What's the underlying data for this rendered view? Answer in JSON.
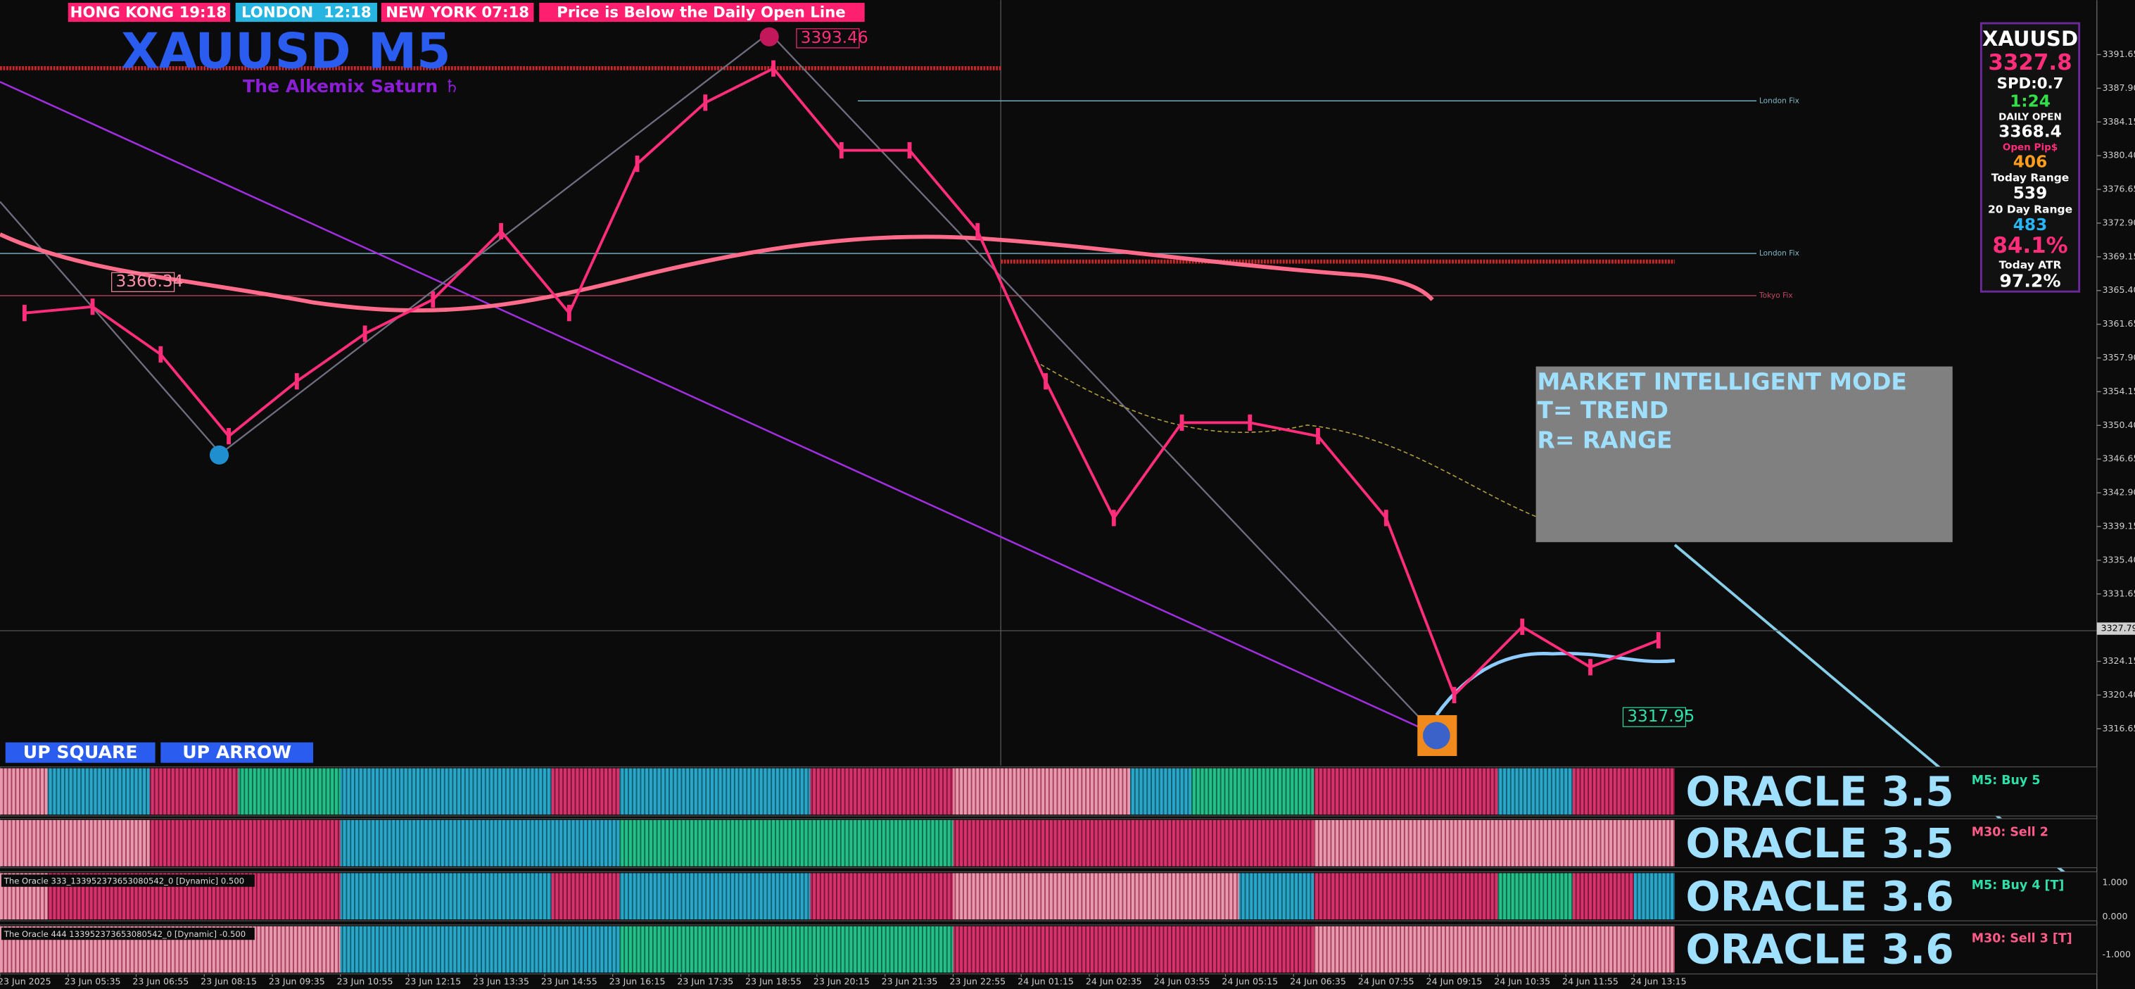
{
  "header": {
    "clocks": [
      "HONG KONG 19:18",
      "LONDON  12:18",
      "NEW YORK 07:18"
    ],
    "alert": "Price is Below the Daily Open Line",
    "symbol_title": "XAUUSD M5",
    "subtitle": "The Alkemix Saturn ♄"
  },
  "chart_data": {
    "type": "line",
    "categories": [
      "23 Jun 2025",
      "23 Jun 05:35",
      "23 Jun 06:55",
      "23 Jun 08:15",
      "23 Jun 09:35",
      "23 Jun 10:55",
      "23 Jun 12:15",
      "23 Jun 13:35",
      "23 Jun 14:55",
      "23 Jun 16:15",
      "23 Jun 17:35",
      "23 Jun 18:55",
      "23 Jun 20:15",
      "23 Jun 21:35",
      "23 Jun 22:55",
      "24 Jun 01:15",
      "24 Jun 02:35",
      "24 Jun 03:55",
      "24 Jun 05:15",
      "24 Jun 06:35",
      "24 Jun 07:55",
      "24 Jun 09:15",
      "24 Jun 10:35",
      "24 Jun 11:55",
      "24 Jun 13:15"
    ],
    "values": [
      3362.9,
      3363.6,
      3358.3,
      3349.2,
      3355.3,
      3360.6,
      3364.4,
      3372.0,
      3362.9,
      3379.5,
      3386.3,
      3390.1,
      3381.0,
      3381.0,
      3372.0,
      3355.3,
      3340.1,
      3350.7,
      3350.7,
      3349.2,
      3340.1,
      3320.4,
      3328.0,
      3323.5,
      3326.5
    ],
    "color": "#ff2d7a",
    "ylim": [
      3312.56,
      3397.71
    ],
    "yticks": [
      3391.65,
      {
        "value": 3387.9,
        "label": "3387.90"
      },
      3384.15,
      {
        "value": 3380.4,
        "label": "3380.40"
      },
      3376.65,
      {
        "value": 3372.9,
        "label": "3372.90"
      },
      3369.15,
      {
        "value": 3365.4,
        "label": "3365.40"
      },
      3361.65,
      {
        "value": 3357.9,
        "label": "3357.90"
      },
      3354.15,
      {
        "value": 3350.4,
        "label": "3350.40"
      },
      3346.65,
      {
        "value": 3342.9,
        "label": "3342.90"
      },
      3339.15,
      {
        "value": 3335.4,
        "label": "3335.40"
      },
      3331.65,
      3324.15,
      {
        "value": 3320.4,
        "label": "3320.40"
      },
      3316.65
    ],
    "current_price": 3327.79,
    "price_labels": [
      3393.46,
      3366.34,
      3317.95
    ],
    "grid": false
  },
  "level_labels": [
    "London Fix",
    "London Fix",
    "Tokyo Fix"
  ],
  "buttons": [
    "UP SQUARE",
    "UP ARROW"
  ],
  "info_panel": [
    {
      "text": "XAUUSD",
      "color": "#ffffff"
    },
    {
      "text": "3327.8",
      "color": "#ff2d7a"
    },
    {
      "text": "SPD:0.7",
      "color": "#ffffff"
    },
    {
      "text": "1:24",
      "color": "#33e04a"
    },
    {
      "text": "DAILY OPEN",
      "color": "#ffffff"
    },
    {
      "text": "3368.4",
      "color": "#ffffff"
    },
    {
      "text": "Open Pip$",
      "color": "#ff2d7a"
    },
    {
      "text": "406",
      "color": "#ff9d1c"
    },
    {
      "text": "Today Range",
      "color": "#ffffff"
    },
    {
      "text": "539",
      "color": "#ffffff"
    },
    {
      "text": "20 Day Range",
      "color": "#ffffff"
    },
    {
      "text": "483",
      "color": "#29b6f6"
    },
    {
      "text": "84.1%",
      "color": "#ff2d7a"
    },
    {
      "text": "Today ATR",
      "color": "#ffffff"
    },
    {
      "text": "97.2%",
      "color": "#ffffff"
    }
  ],
  "market_mode": [
    "MARKET INTELLIGENT MODE",
    "T= TREND",
    "R= RANGE"
  ],
  "oracle_panels": [
    {
      "label": "ORACLE 3.5",
      "signal": "M5: Buy 5"
    },
    {
      "label": "ORACLE 3.5",
      "signal": "M30: Sell 2"
    },
    {
      "label": "ORACLE 3.6",
      "signal": "M5: Buy 4 [T]",
      "caption": "The Oracle 333_133952373653080542_0 [Dynamic] 0.500"
    },
    {
      "label": "ORACLE 3.6",
      "signal": "M30: Sell 3 [T]",
      "caption": "The Oracle 444 133952373653080542_0 [Dynamic] -0.500"
    }
  ],
  "oracle_axis": [
    "1.000",
    "0.000",
    "-1.000"
  ]
}
